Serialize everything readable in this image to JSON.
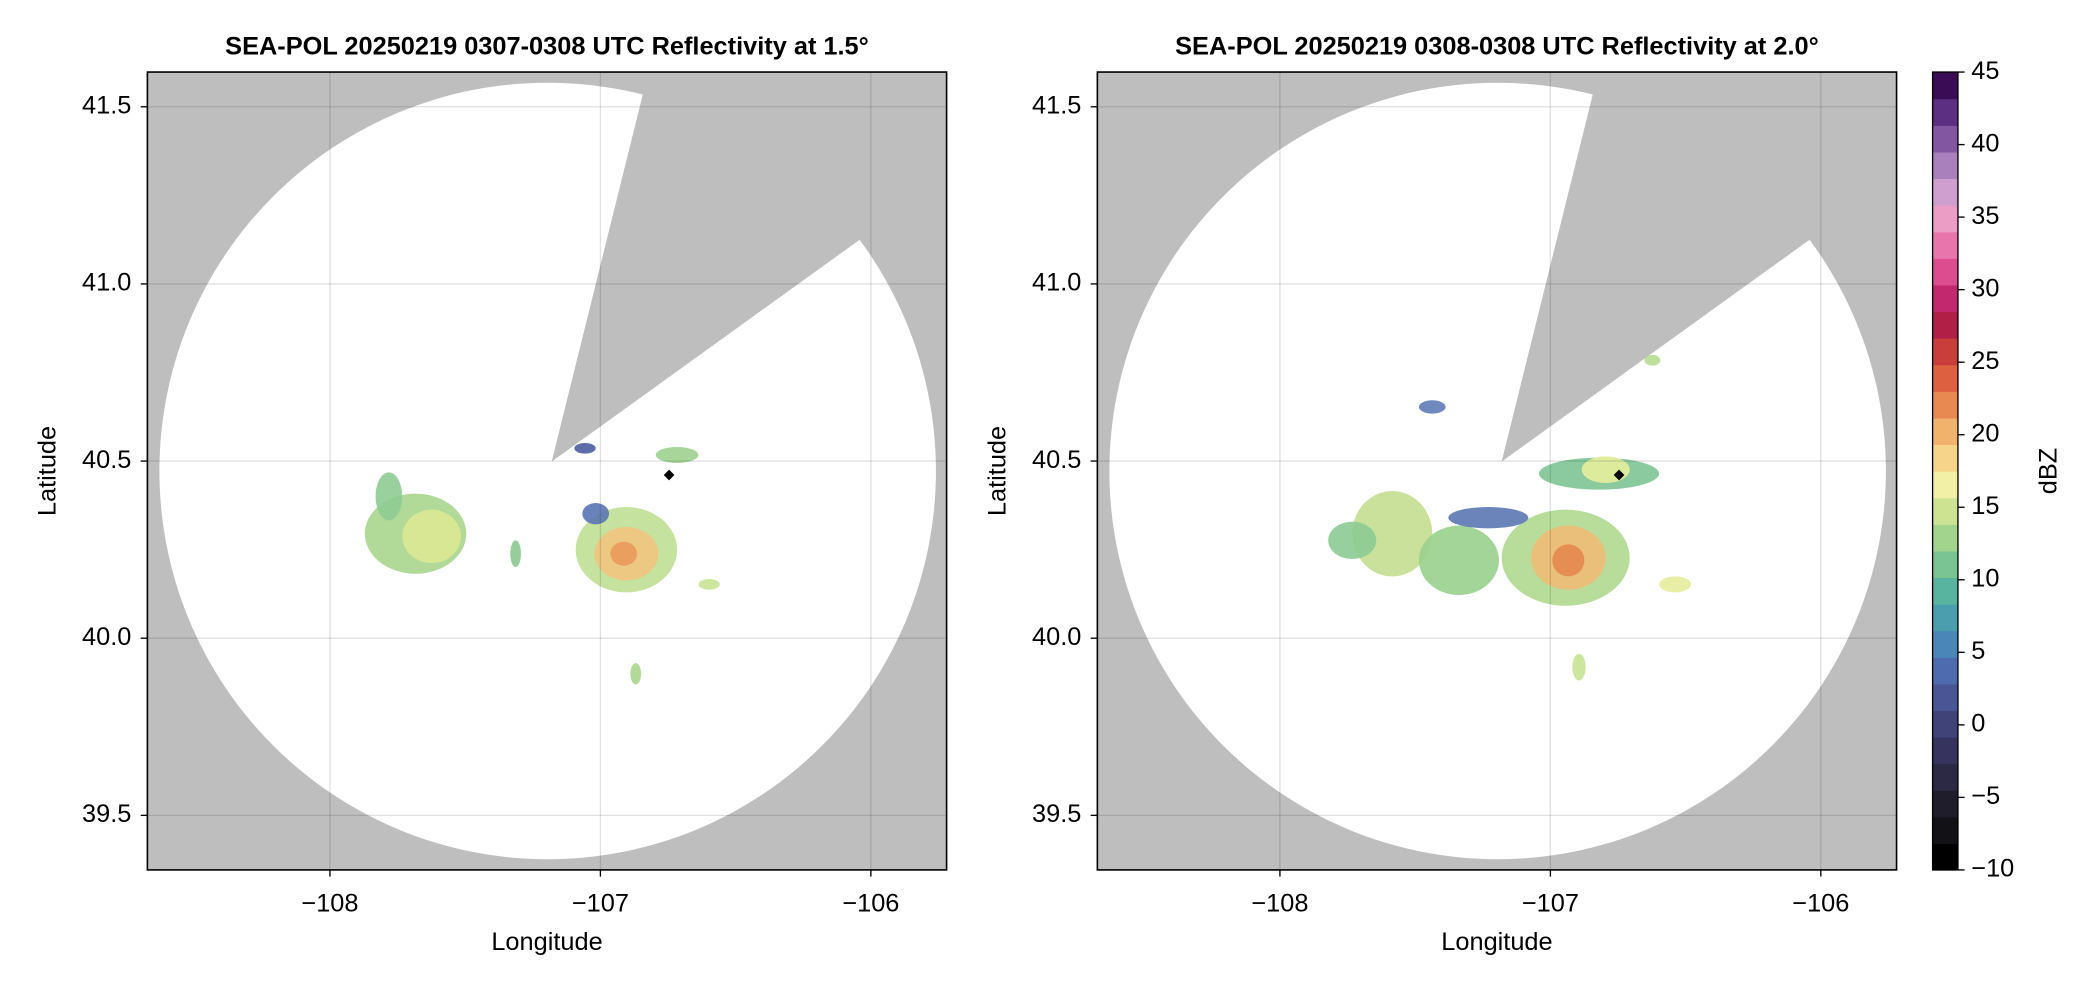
{
  "chart_data": [
    {
      "type": "map",
      "title": "SEA-POL 20250219 0307-0308 UTC Reflectivity at 1.5°",
      "x_label": "Longitude",
      "y_label": "Latitude",
      "xlim": [
        -108.675,
        -105.72
      ],
      "ylim": [
        39.346,
        41.598
      ],
      "xticks": [
        {
          "value": -108,
          "label": "−108"
        },
        {
          "value": -107,
          "label": "−107"
        },
        {
          "value": -106,
          "label": "−106"
        }
      ],
      "yticks": [
        {
          "value": 39.5,
          "label": "39.5"
        },
        {
          "value": 40,
          "label": "40.0"
        },
        {
          "value": 40.5,
          "label": "40.5"
        },
        {
          "value": 41,
          "label": "41.0"
        },
        {
          "value": 41.5,
          "label": "41.5"
        }
      ],
      "grid": true
    },
    {
      "type": "map",
      "title": "SEA-POL 20250219 0308-0308 UTC Reflectivity at 2.0°",
      "x_label": "Longitude",
      "y_label": "Latitude",
      "xlim": [
        -108.675,
        -105.72
      ],
      "ylim": [
        39.346,
        41.598
      ],
      "xticks": [
        {
          "value": -108,
          "label": "−108"
        },
        {
          "value": -107,
          "label": "−107"
        },
        {
          "value": -106,
          "label": "−106"
        }
      ],
      "yticks": [
        {
          "value": 39.5,
          "label": "39.5"
        },
        {
          "value": 40,
          "label": "40.0"
        },
        {
          "value": 40.5,
          "label": "40.5"
        },
        {
          "value": 41,
          "label": "41.0"
        },
        {
          "value": 41.5,
          "label": "41.5"
        }
      ],
      "grid": true,
      "colorbar": {
        "label": "dBZ",
        "lim": [
          -10,
          45
        ],
        "ticks": [
          {
            "value": -10,
            "label": "−10"
          },
          {
            "value": -5,
            "label": "−5"
          },
          0,
          5,
          10,
          15,
          20,
          25,
          30,
          35,
          40,
          45
        ],
        "colors": [
          "#000000",
          "#111116",
          "#1f1d2c",
          "#2c2944",
          "#36345e",
          "#3f4378",
          "#4a5595",
          "#4f6bb0",
          "#4a86b8",
          "#4b9eae",
          "#58b49f",
          "#7ac494",
          "#a3d48e",
          "#cde392",
          "#f2f0a6",
          "#f6d58b",
          "#f1b26c",
          "#e98952",
          "#dd6140",
          "#c93d3b",
          "#b11f46",
          "#c2286d",
          "#db4d8f",
          "#e876ad",
          "#eb9dc6",
          "#cfa0cf",
          "#a97fbc",
          "#8256a0",
          "#5d2f82",
          "#3a0c55"
        ]
      }
    }
  ]
}
